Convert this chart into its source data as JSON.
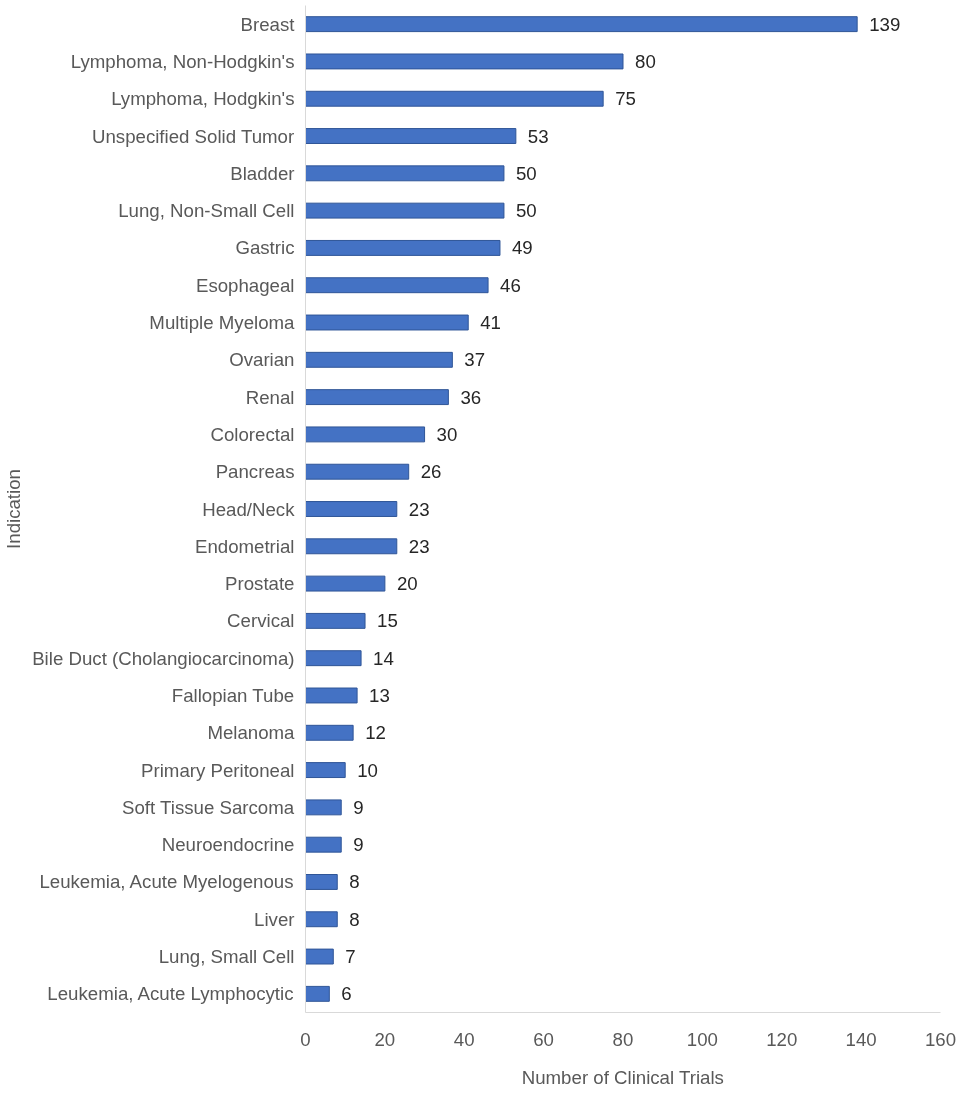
{
  "chart_data": {
    "type": "bar",
    "orientation": "horizontal",
    "xlabel": "Number of Clinical Trials",
    "ylabel": "Indication",
    "categories": [
      "Breast",
      "Lymphoma, Non-Hodgkin's",
      "Lymphoma, Hodgkin's",
      "Unspecified Solid Tumor",
      "Bladder",
      "Lung, Non-Small Cell",
      "Gastric",
      "Esophageal",
      "Multiple Myeloma",
      "Ovarian",
      "Renal",
      "Colorectal",
      "Pancreas",
      "Head/Neck",
      "Endometrial",
      "Prostate",
      "Cervical",
      "Bile Duct (Cholangiocarcinoma)",
      "Fallopian Tube",
      "Melanoma",
      "Primary Peritoneal",
      "Soft Tissue Sarcoma",
      "Neuroendocrine",
      "Leukemia, Acute Myelogenous",
      "Liver",
      "Lung, Small Cell",
      "Leukemia, Acute Lymphocytic"
    ],
    "values": [
      139,
      80,
      75,
      53,
      50,
      50,
      49,
      46,
      41,
      37,
      36,
      30,
      26,
      23,
      23,
      20,
      15,
      14,
      13,
      12,
      10,
      9,
      9,
      8,
      8,
      7,
      6
    ],
    "color": "#4472c4",
    "xlim": [
      0,
      160
    ],
    "xticks": [
      0,
      20,
      40,
      60,
      80,
      100,
      120,
      140,
      160
    ],
    "grid": false,
    "data_labels": true
  }
}
